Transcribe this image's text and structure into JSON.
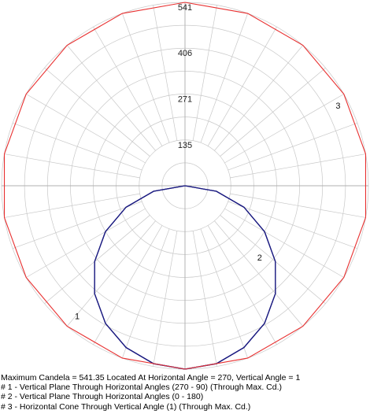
{
  "chart_data": {
    "type": "polar",
    "radial_max": 541,
    "radial_ticks": [
      "541",
      "406",
      "271",
      "135"
    ],
    "radial_tick_values": [
      541,
      406,
      271,
      135
    ],
    "angular_grid_step_deg": 10,
    "series": [
      {
        "curve_label": "1",
        "color": "#1a1a80",
        "description": "Vertical Plane Through Horizontal Angles (270 - 90) (Through Max. Cd.)",
        "angles_deg": [
          0,
          10,
          20,
          30,
          40,
          50,
          60,
          70,
          80,
          90,
          100,
          110,
          120,
          130,
          140,
          150,
          160,
          170,
          180,
          190,
          200,
          210,
          220,
          230,
          240,
          250,
          260,
          270,
          280,
          290,
          300,
          310,
          320,
          330,
          340,
          350
        ],
        "candela": [
          541,
          533,
          508,
          469,
          415,
          348,
          271,
          185,
          94,
          0,
          0,
          0,
          0,
          0,
          0,
          0,
          0,
          0,
          0,
          0,
          0,
          0,
          0,
          0,
          0,
          0,
          0,
          0,
          94,
          185,
          271,
          348,
          415,
          469,
          508,
          533
        ]
      },
      {
        "curve_label": "2",
        "color": "#1a1a80",
        "description": "Vertical Plane Through Horizontal Angles (0 - 180)",
        "angles_deg": [
          0,
          10,
          20,
          30,
          40,
          50,
          60,
          70,
          80,
          90,
          100,
          110,
          120,
          130,
          140,
          150,
          160,
          170,
          180,
          190,
          200,
          210,
          220,
          230,
          240,
          250,
          260,
          270,
          280,
          290,
          300,
          310,
          320,
          330,
          340,
          350
        ],
        "candela": [
          541,
          533,
          508,
          469,
          415,
          348,
          271,
          185,
          94,
          0,
          0,
          0,
          0,
          0,
          0,
          0,
          0,
          0,
          0,
          0,
          0,
          0,
          0,
          0,
          0,
          0,
          0,
          0,
          94,
          185,
          271,
          348,
          415,
          469,
          508,
          533
        ]
      },
      {
        "curve_label": "3",
        "color": "#e83030",
        "description": "Horizontal Cone Through Vertical Angle (1) (Through Max. Cd.)",
        "angles_deg": [
          0,
          20,
          40,
          60,
          80,
          100,
          120,
          140,
          160,
          180,
          200,
          220,
          240,
          260,
          280,
          300,
          320,
          340
        ],
        "candela": [
          541,
          541,
          541,
          541,
          541,
          541,
          541,
          541,
          541,
          541,
          541,
          541,
          541,
          541,
          541,
          541,
          541,
          541
        ]
      }
    ]
  },
  "info": {
    "line1": "Maximum Candela = 541.35   Located At Horizontal Angle = 270, Vertical Angle = 1",
    "line2": "# 1 - Vertical Plane Through Horizontal Angles (270 - 90) (Through Max. Cd.)",
    "line3": "# 2 - Vertical Plane Through Horizontal Angles (0 - 180)",
    "line4": "# 3 - Horizontal Cone Through Vertical Angle (1) (Through Max. Cd.)"
  }
}
